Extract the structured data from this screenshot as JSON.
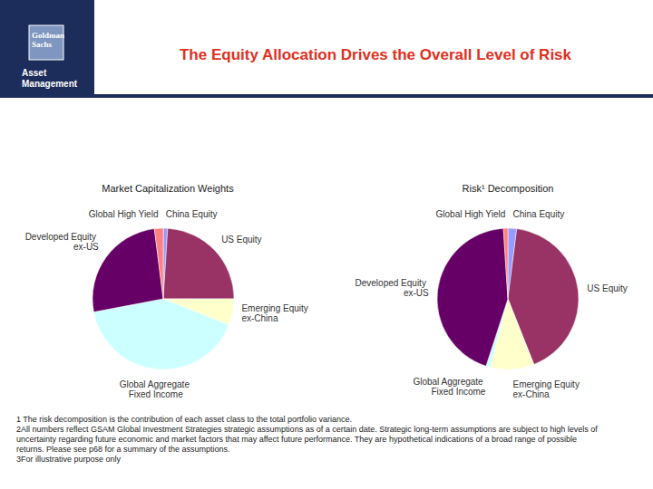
{
  "logo": {
    "firm": "Goldman Sachs",
    "division": "Asset Management"
  },
  "title": "The Equity Allocation Drives the Overall Level of Risk",
  "chart_data": [
    {
      "type": "pie",
      "title": "Market Capitalization Weights",
      "categories": [
        "China Equity",
        "US Equity",
        "Emerging Equity ex-China",
        "Global Aggregate Fixed Income",
        "Developed Equity ex-US",
        "Global High Yield"
      ],
      "values": [
        1,
        24,
        6,
        41,
        26,
        2
      ],
      "colors": [
        "#9999ff",
        "#993366",
        "#ffffcc",
        "#ccffff",
        "#660066",
        "#ff8080"
      ]
    },
    {
      "type": "pie",
      "title": "Risk¹ Decomposition",
      "categories": [
        "China Equity",
        "US Equity",
        "Emerging Equity ex-China",
        "Global Aggregate Fixed Income",
        "Developed Equity ex-US",
        "Global High Yield"
      ],
      "values": [
        2,
        42,
        10,
        1,
        44,
        1
      ],
      "colors": [
        "#9999ff",
        "#993366",
        "#ffffcc",
        "#ccffff",
        "#660066",
        "#ff8080"
      ]
    }
  ],
  "footnotes": [
    "1 The risk decomposition is the contribution of each asset class to the total portfolio variance.",
    "2All numbers reflect GSAM Global Investment Strategies strategic assumptions as of a certain date.  Strategic long-term assumptions are subject to high levels of uncertainty regarding future economic and market factors that may affect future performance. They are hypothetical indications of a broad range of possible returns. Please see p68 for a summary of the assumptions.",
    "3For illustrative purpose only"
  ]
}
